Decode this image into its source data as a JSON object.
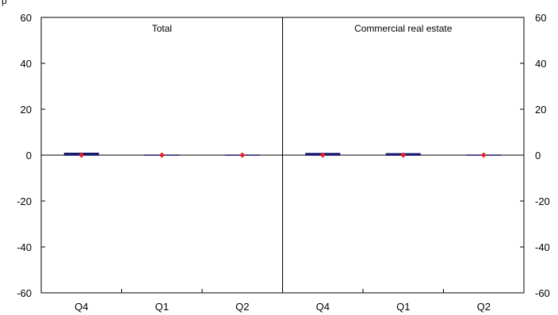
{
  "header_fragment": "p",
  "chart_data": {
    "type": "bar",
    "panels": [
      {
        "title": "Total",
        "categories": [
          "Q4",
          "Q1",
          "Q2"
        ],
        "series": [
          {
            "kind": "bar",
            "values": [
              0.8,
              0,
              0
            ]
          },
          {
            "kind": "marker",
            "values": [
              0,
              0,
              0
            ]
          }
        ]
      },
      {
        "title": "Commercial real estate",
        "categories": [
          "Q4",
          "Q1",
          "Q2"
        ],
        "series": [
          {
            "kind": "bar",
            "values": [
              0.7,
              0.6,
              0
            ]
          },
          {
            "kind": "marker",
            "values": [
              0,
              0,
              0
            ]
          }
        ]
      }
    ],
    "ylim": [
      -60,
      60
    ],
    "yticks": [
      60,
      40,
      20,
      0,
      -20,
      -40,
      -60
    ],
    "left_tick_labels": [
      "60",
      "40",
      "20",
      "0",
      "-20",
      "-40",
      "-60"
    ],
    "right_tick_labels": [
      "60",
      "40",
      "20",
      "0",
      "-20",
      "-40",
      "-60"
    ],
    "colors": {
      "bar": "#1a1a6e",
      "marker": "#e8202a",
      "axis": "#000000"
    },
    "grid": false,
    "legend": "none"
  }
}
